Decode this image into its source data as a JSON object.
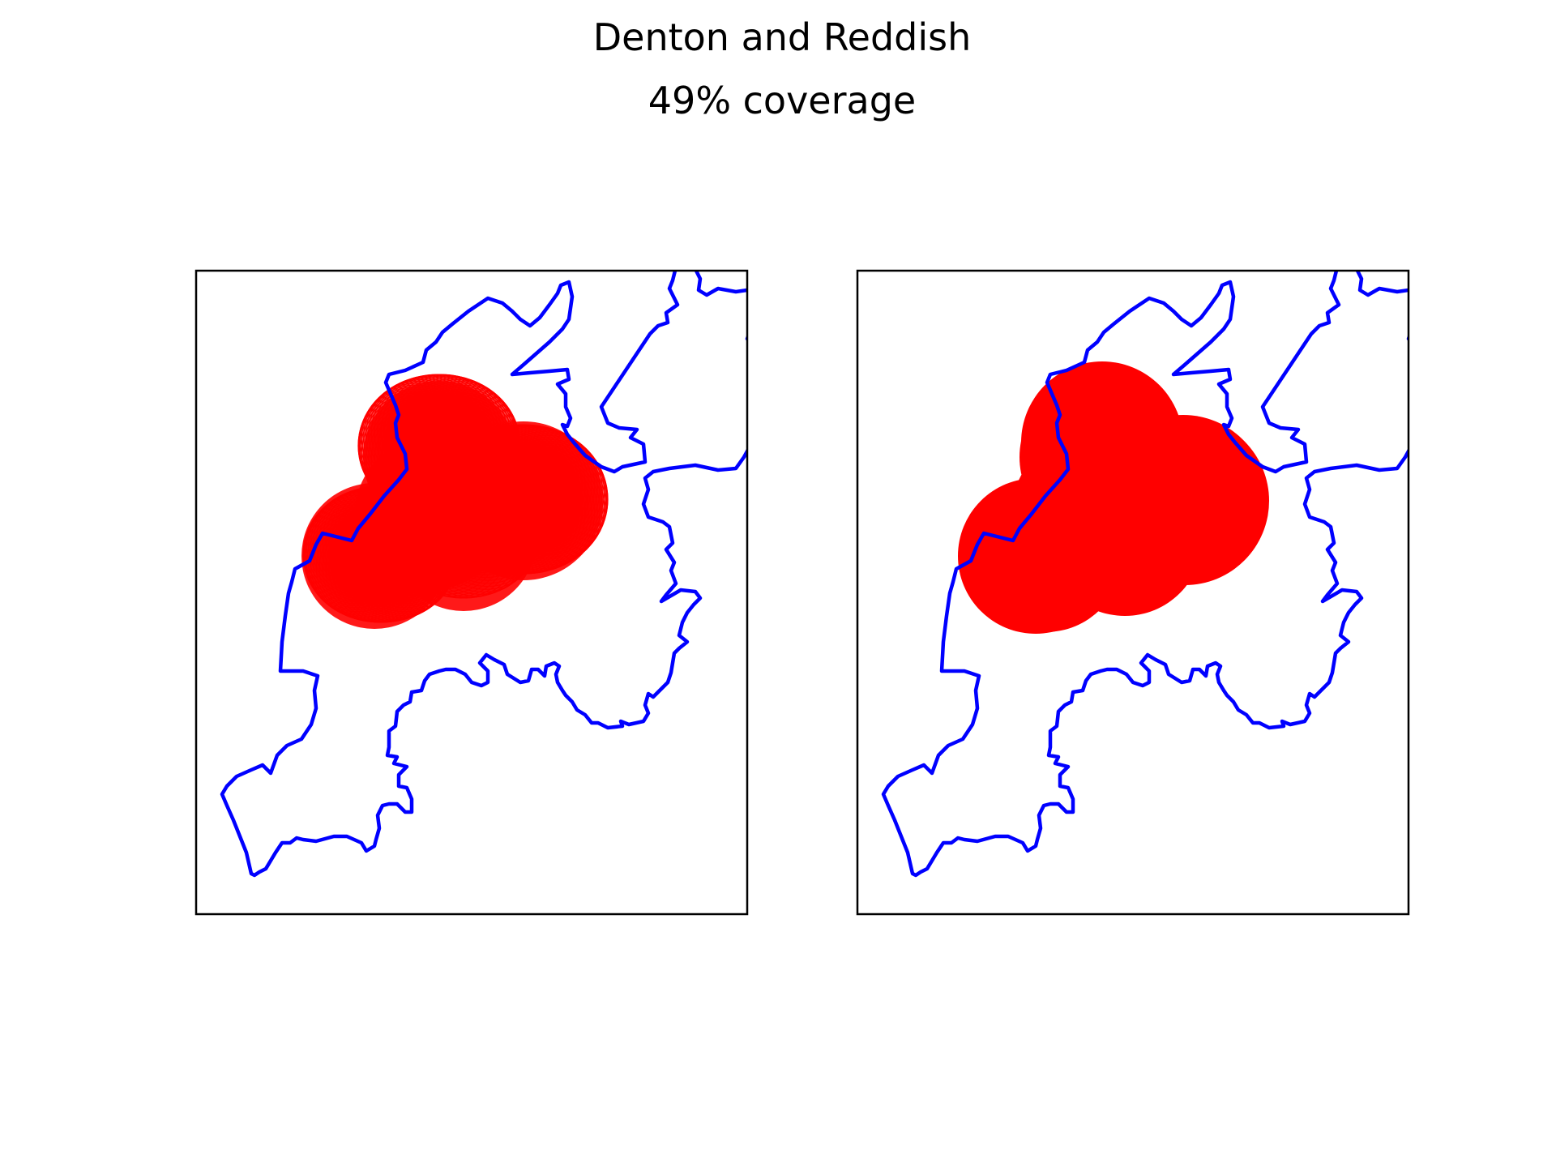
{
  "figure": {
    "title": "Denton and Reddish",
    "subtitle": "49% coverage"
  },
  "colors": {
    "boundary": "#0000ff",
    "coverage": "#ff0000",
    "frame": "#000000",
    "background": "#ffffff"
  },
  "chart_data": [
    {
      "type": "map",
      "panel": "left",
      "title": "",
      "rendering": "overlapping circle outlines",
      "coverage_percent": 49,
      "axes_visible": false,
      "series": [
        {
          "role": "constituency-boundary",
          "color": "#0000ff"
        },
        {
          "role": "coverage-area",
          "color": "#ff0000"
        }
      ]
    },
    {
      "type": "map",
      "panel": "right",
      "title": "",
      "rendering": "merged filled area",
      "coverage_percent": 49,
      "axes_visible": false,
      "series": [
        {
          "role": "constituency-boundary",
          "color": "#0000ff"
        },
        {
          "role": "coverage-area",
          "color": "#ff0000"
        }
      ]
    }
  ]
}
